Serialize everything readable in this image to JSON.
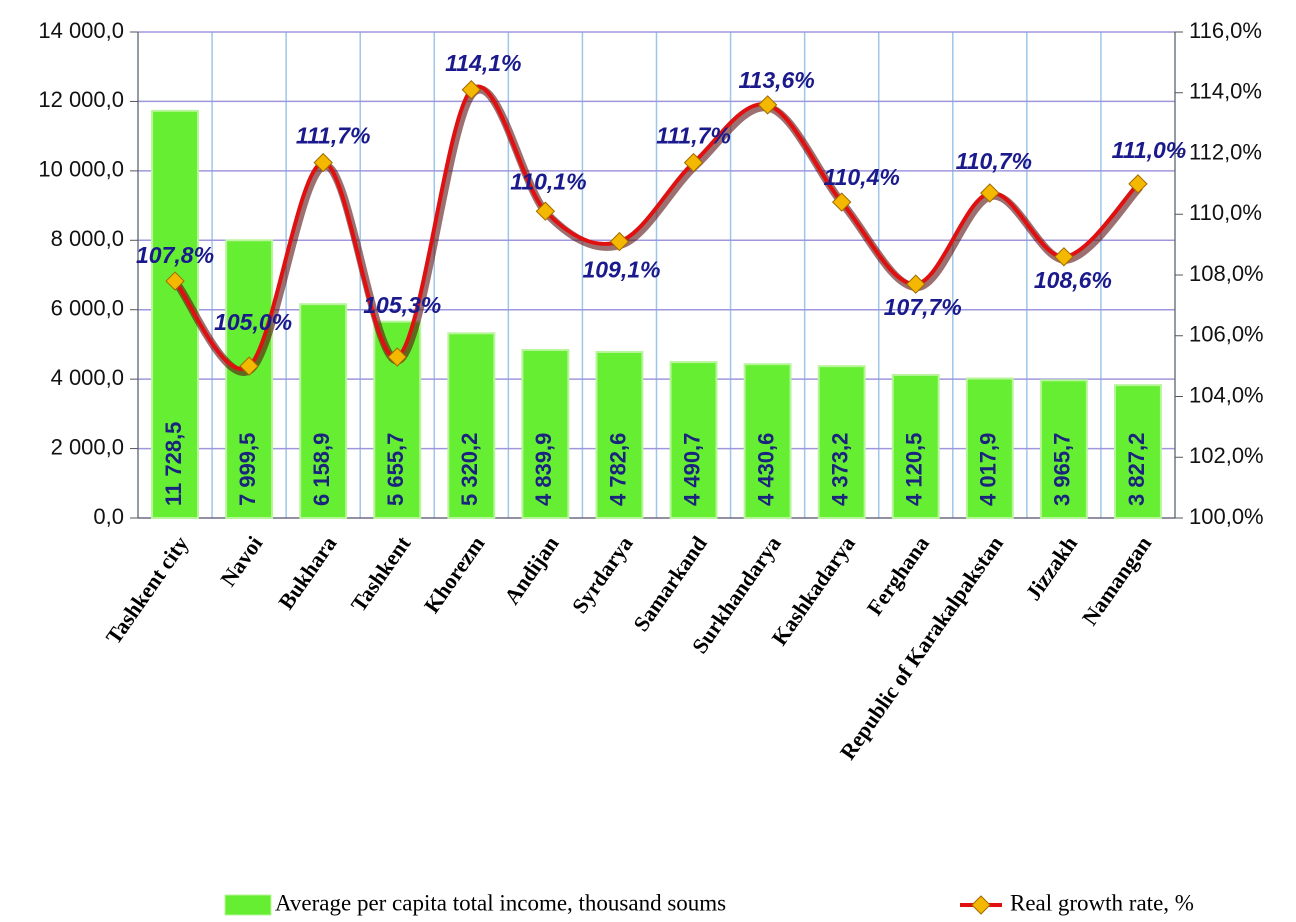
{
  "chart_data": {
    "type": "combo",
    "categories": [
      "Tashkent city",
      "Navoi",
      "Bukhara",
      "Tashkent",
      "Khorezm",
      "Andijan",
      "Syrdarya",
      "Samarkand",
      "Surkhandarya",
      "Kashkadarya",
      "Ferghana",
      "Republic of Karakalpakstan",
      "Jizzakh",
      "Namangan"
    ],
    "series": [
      {
        "name": "Average per capita total income, thousand soums",
        "type": "bar",
        "color": "#66ee33",
        "values": [
          11728.5,
          7999.5,
          6158.9,
          5655.7,
          5320.2,
          4839.9,
          4782.6,
          4490.7,
          4430.6,
          4373.2,
          4120.5,
          4017.9,
          3965.7,
          3827.2
        ],
        "value_labels": [
          "11 728,5",
          "7 999,5",
          "6 158,9",
          "5 655,7",
          "5 320,2",
          "4 839,9",
          "4 782,6",
          "4 490,7",
          "4 430,6",
          "4 373,2",
          "4 120,5",
          "4 017,9",
          "3 965,7",
          "3 827,2"
        ]
      },
      {
        "name": "Real growth rate, %",
        "type": "line",
        "axis": "y2",
        "color": "#e01010",
        "marker_color": "#f5b800",
        "values": [
          107.8,
          105.0,
          111.7,
          105.3,
          114.1,
          110.1,
          109.1,
          111.7,
          113.6,
          110.4,
          107.7,
          110.7,
          108.6,
          111.0
        ],
        "value_labels": [
          "107,8%",
          "105,0%",
          "111,7%",
          "105,3%",
          "114,1%",
          "110,1%",
          "109,1%",
          "111,7%",
          "113,6%",
          "110,4%",
          "107,7%",
          "110,7%",
          "108,6%",
          "111,0%"
        ]
      }
    ],
    "ylim": [
      0,
      14000
    ],
    "yticks": [
      {
        "value": 0,
        "label": "0,0"
      },
      {
        "value": 2000,
        "label": "2 000,0"
      },
      {
        "value": 4000,
        "label": "4 000,0"
      },
      {
        "value": 6000,
        "label": "6 000,0"
      },
      {
        "value": 8000,
        "label": "8 000,0"
      },
      {
        "value": 10000,
        "label": "10 000,0"
      },
      {
        "value": 12000,
        "label": "12 000,0"
      },
      {
        "value": 14000,
        "label": "14 000,0"
      }
    ],
    "y2lim": [
      100,
      116
    ],
    "y2ticks": [
      {
        "value": 100,
        "label": "100,0%"
      },
      {
        "value": 102,
        "label": "102,0%"
      },
      {
        "value": 104,
        "label": "104,0%"
      },
      {
        "value": 106,
        "label": "106,0%"
      },
      {
        "value": 108,
        "label": "108,0%"
      },
      {
        "value": 110,
        "label": "110,0%"
      },
      {
        "value": 112,
        "label": "112,0%"
      },
      {
        "value": 114,
        "label": "114,0%"
      },
      {
        "value": 116,
        "label": "116,0%"
      }
    ],
    "grid": true,
    "legend": "bottom"
  }
}
